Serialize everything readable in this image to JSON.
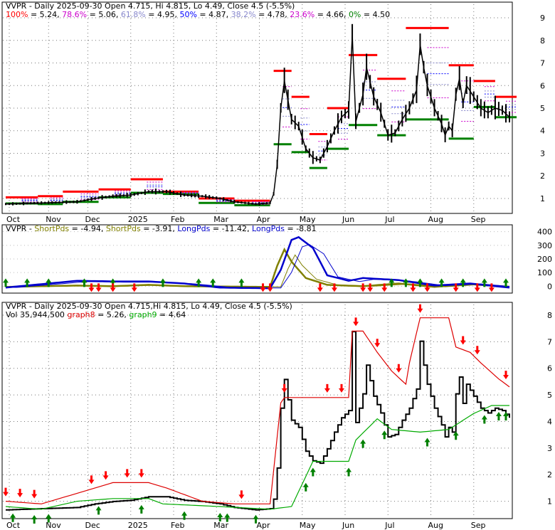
{
  "colors": {
    "up": "#ff0000",
    "down": "#008000",
    "price": "#000000",
    "fib_100": "#ff0000",
    "fib_786": "#cc00cc",
    "fib_618": "#8888cc",
    "fib_50": "#0000ff",
    "fib_382": "#8888cc",
    "fib_236": "#cc00cc",
    "fib_0": "#008000",
    "shortpds": "#808000",
    "longpds": "#0000cc",
    "graph8": "#dd0000",
    "graph9": "#00aa00"
  },
  "header": {
    "price_title": "VVPR - Daily 2025-09-30 Open 4.715, Hi 4.815, Lo 4.49, Close 4.5 (-5.5%)",
    "fib": [
      {
        "label": "100%",
        "value": "= 5.24,",
        "color": "#ff0000"
      },
      {
        "label": "78.6%",
        "value": "= 5.06,",
        "color": "#cc00cc"
      },
      {
        "label": "61.8%",
        "value": "= 4.95,",
        "color": "#8888cc"
      },
      {
        "label": "50%",
        "value": "= 4.87,",
        "color": "#0000ff"
      },
      {
        "label": "38.2%",
        "value": "= 4.78,",
        "color": "#8888cc"
      },
      {
        "label": "23.6%",
        "value": "= 4.66,",
        "color": "#cc00cc"
      },
      {
        "label": "0%",
        "value": "= 4.50",
        "color": "#008000"
      }
    ],
    "osc_title": [
      {
        "text": "VVPR - ",
        "color": "#000000"
      },
      {
        "text": "ShortPds",
        "color": "#808000"
      },
      {
        "text": " = -4.94, ",
        "color": "#000000"
      },
      {
        "text": "ShortPds",
        "color": "#808000"
      },
      {
        "text": " = -3.91, ",
        "color": "#000000"
      },
      {
        "text": "LongPds",
        "color": "#0000cc"
      },
      {
        "text": " = -11.42, ",
        "color": "#000000"
      },
      {
        "text": "LongPds",
        "color": "#0000cc"
      },
      {
        "text": " = -8.81",
        "color": "#000000"
      }
    ],
    "lower_title": "VVPR - Daily 2025-09-30 Open 4.715,Hi 4.815, Lo 4.49, Close 4.5 (-5.5%)",
    "vol_title": [
      {
        "text": "Vol 35,944,500 ",
        "color": "#000000"
      },
      {
        "text": "graph8",
        "color": "#dd0000"
      },
      {
        "text": " = 5.26, ",
        "color": "#000000"
      },
      {
        "text": "graph9",
        "color": "#00aa00"
      },
      {
        "text": " = 4.64",
        "color": "#000000"
      }
    ]
  },
  "chart_data": [
    {
      "type": "bar",
      "panel": "price",
      "ticker": "VVPR",
      "x_labels": [
        "Oct",
        "Nov",
        "Dec",
        "2025",
        "Feb",
        "Mar",
        "Apr",
        "May",
        "Jun",
        "Jul",
        "Aug",
        "Sep"
      ],
      "y_ticks": [
        1,
        2,
        3,
        4,
        5,
        6,
        7,
        8,
        9
      ],
      "ylim": [
        0.4,
        9.6
      ],
      "grid": true,
      "close_path": [
        [
          0,
          0.75
        ],
        [
          10,
          0.8
        ],
        [
          20,
          0.85
        ],
        [
          25,
          1.0
        ],
        [
          30,
          1.1
        ],
        [
          35,
          1.15
        ],
        [
          40,
          1.3
        ],
        [
          45,
          1.3
        ],
        [
          50,
          1.15
        ],
        [
          55,
          1.1
        ],
        [
          60,
          1.0
        ],
        [
          64,
          0.85
        ],
        [
          70,
          0.75
        ],
        [
          74,
          0.8
        ],
        [
          75,
          1.2
        ],
        [
          76,
          2.5
        ],
        [
          77,
          5.0
        ],
        [
          78,
          6.2
        ],
        [
          80,
          4.5
        ],
        [
          82,
          4.2
        ],
        [
          84,
          3.2
        ],
        [
          86,
          2.8
        ],
        [
          88,
          2.7
        ],
        [
          90,
          3.3
        ],
        [
          92,
          4.0
        ],
        [
          94,
          4.6
        ],
        [
          96,
          4.9
        ],
        [
          97,
          8.2
        ],
        [
          98,
          4.4
        ],
        [
          100,
          5.6
        ],
        [
          101,
          6.8
        ],
        [
          103,
          5.5
        ],
        [
          105,
          4.8
        ],
        [
          107,
          3.8
        ],
        [
          109,
          3.9
        ],
        [
          111,
          4.5
        ],
        [
          113,
          5.0
        ],
        [
          115,
          5.8
        ],
        [
          116,
          7.8
        ],
        [
          117,
          6.8
        ],
        [
          118,
          6.0
        ],
        [
          120,
          5.0
        ],
        [
          122,
          4.3
        ],
        [
          123,
          3.8
        ],
        [
          124,
          4.2
        ],
        [
          125,
          4.0
        ],
        [
          126,
          5.6
        ],
        [
          127,
          6.3
        ],
        [
          128,
          5.2
        ],
        [
          129,
          6.0
        ],
        [
          131,
          5.5
        ],
        [
          133,
          5.0
        ],
        [
          135,
          4.8
        ],
        [
          137,
          5.0
        ],
        [
          139,
          4.9
        ],
        [
          141,
          4.6
        ]
      ],
      "long_fib": {
        "high": 7.7,
        "low": 4.6
      },
      "period_boxes": [
        {
          "x": [
            0,
            9
          ],
          "high": 1.05,
          "low": 0.78
        },
        {
          "x": [
            9,
            16
          ],
          "high": 1.1,
          "low": 0.75
        },
        {
          "x": [
            16,
            26
          ],
          "high": 1.3,
          "low": 0.85
        },
        {
          "x": [
            26,
            35
          ],
          "high": 1.4,
          "low": 1.05
        },
        {
          "x": [
            35,
            44
          ],
          "high": 1.85,
          "low": 1.25
        },
        {
          "x": [
            44,
            54
          ],
          "high": 1.3,
          "low": 1.2
        },
        {
          "x": [
            54,
            64
          ],
          "high": 1.0,
          "low": 0.8
        },
        {
          "x": [
            64,
            74
          ],
          "high": 0.9,
          "low": 0.7
        },
        {
          "x": [
            75,
            80
          ],
          "high": 6.65,
          "low": 3.4
        },
        {
          "x": [
            80,
            85
          ],
          "high": 5.5,
          "low": 3.05
        },
        {
          "x": [
            85,
            90
          ],
          "high": 3.85,
          "low": 2.35
        },
        {
          "x": [
            90,
            96
          ],
          "high": 5.0,
          "low": 3.2
        },
        {
          "x": [
            96,
            104
          ],
          "high": 7.35,
          "low": 4.25
        },
        {
          "x": [
            104,
            112
          ],
          "high": 6.3,
          "low": 3.8
        },
        {
          "x": [
            112,
            124
          ],
          "high": 8.55,
          "low": 4.5
        },
        {
          "x": [
            124,
            131
          ],
          "high": 6.9,
          "low": 3.65
        },
        {
          "x": [
            131,
            137
          ],
          "high": 6.2,
          "low": 5.05
        },
        {
          "x": [
            137,
            143
          ],
          "high": 5.5,
          "low": 4.6
        }
      ]
    },
    {
      "type": "line",
      "panel": "oscillator",
      "y_ticks": [
        0,
        100,
        200,
        300,
        400
      ],
      "ylim": [
        -40,
        440
      ],
      "series": [
        {
          "name": "ShortPds",
          "values": [
            [
              0,
              -5
            ],
            [
              20,
              5
            ],
            [
              30,
              0
            ],
            [
              40,
              10
            ],
            [
              50,
              0
            ],
            [
              74,
              -5
            ],
            [
              76,
              150
            ],
            [
              78,
              270
            ],
            [
              80,
              180
            ],
            [
              84,
              60
            ],
            [
              90,
              10
            ],
            [
              100,
              0
            ],
            [
              110,
              20
            ],
            [
              120,
              -5
            ],
            [
              130,
              15
            ],
            [
              141,
              -5
            ]
          ]
        },
        {
          "name": "LongPds",
          "values": [
            [
              0,
              -10
            ],
            [
              20,
              40
            ],
            [
              30,
              35
            ],
            [
              40,
              35
            ],
            [
              50,
              20
            ],
            [
              60,
              -10
            ],
            [
              74,
              -15
            ],
            [
              77,
              120
            ],
            [
              80,
              340
            ],
            [
              82,
              360
            ],
            [
              86,
              280
            ],
            [
              90,
              80
            ],
            [
              96,
              40
            ],
            [
              100,
              60
            ],
            [
              110,
              45
            ],
            [
              120,
              5
            ],
            [
              130,
              20
            ],
            [
              141,
              -10
            ]
          ]
        }
      ],
      "up_arrows": [
        0,
        6,
        12,
        22,
        30,
        44,
        54,
        58,
        66,
        108,
        112,
        116,
        122,
        128,
        134,
        140
      ],
      "down_arrows": [
        24,
        26,
        30,
        36,
        72,
        74,
        88,
        92,
        100,
        102,
        106,
        114,
        118,
        126,
        132,
        136
      ]
    },
    {
      "type": "line",
      "panel": "volume",
      "y_ticks": [
        1,
        2,
        3,
        4,
        5,
        6,
        7,
        8
      ],
      "ylim": [
        0.4,
        8.4
      ],
      "series": [
        {
          "name": "graph8",
          "values": [
            [
              0,
              1.0
            ],
            [
              10,
              0.9
            ],
            [
              20,
              1.3
            ],
            [
              30,
              1.7
            ],
            [
              40,
              1.7
            ],
            [
              45,
              1.5
            ],
            [
              55,
              1.0
            ],
            [
              64,
              0.9
            ],
            [
              74,
              0.9
            ],
            [
              77,
              4.7
            ],
            [
              78,
              4.9
            ],
            [
              96,
              4.9
            ],
            [
              97,
              7.4
            ],
            [
              100,
              7.4
            ],
            [
              104,
              6.6
            ],
            [
              108,
              5.9
            ],
            [
              112,
              5.4
            ],
            [
              113,
              6.2
            ],
            [
              116,
              7.9
            ],
            [
              124,
              7.9
            ],
            [
              126,
              6.8
            ],
            [
              130,
              6.6
            ],
            [
              133,
              6.2
            ],
            [
              138,
              5.6
            ],
            [
              141,
              5.3
            ]
          ]
        },
        {
          "name": "graph9",
          "values": [
            [
              0,
              0.8
            ],
            [
              10,
              0.7
            ],
            [
              20,
              1.0
            ],
            [
              30,
              1.1
            ],
            [
              40,
              1.1
            ],
            [
              44,
              0.9
            ],
            [
              60,
              0.8
            ],
            [
              74,
              0.7
            ],
            [
              80,
              0.8
            ],
            [
              86,
              2.5
            ],
            [
              96,
              2.5
            ],
            [
              98,
              3.3
            ],
            [
              104,
              4.1
            ],
            [
              108,
              3.7
            ],
            [
              116,
              3.6
            ],
            [
              124,
              3.7
            ],
            [
              131,
              4.3
            ],
            [
              136,
              4.6
            ],
            [
              141,
              4.6
            ]
          ]
        }
      ],
      "up_arrows": [
        2,
        8,
        12,
        26,
        38,
        50,
        60,
        62,
        70,
        84,
        86,
        96,
        100,
        106,
        118,
        126,
        134,
        138,
        140
      ],
      "down_arrows": [
        0,
        4,
        8,
        24,
        28,
        34,
        38,
        66,
        78,
        90,
        94,
        98,
        104,
        110,
        116,
        128,
        132,
        140
      ]
    }
  ]
}
